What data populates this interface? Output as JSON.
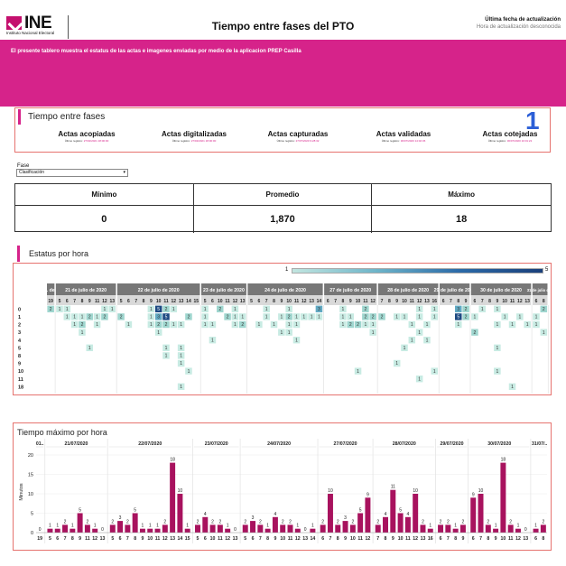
{
  "header": {
    "logo_text": "INE",
    "logo_subtext": "Instituto Nacional Electoral",
    "title": "Tiempo entre fases del PTO",
    "update_label": "Última fecha de  actualización",
    "update_value": "Hora de actualización desconocida"
  },
  "banner": {
    "text": "El presente tablero muestra el estatus de las actas e imagenes enviadas por medio de la aplicacion PREP Casilla"
  },
  "fases_section": {
    "title": "Tiempo entre fases",
    "marker": "1",
    "items": [
      {
        "title": "Actas acopiadas",
        "sub_label": "Último registro:",
        "sub_value": "27/02/2021 18:00:00"
      },
      {
        "title": "Actas digitalizadas",
        "sub_label": "Último registro:",
        "sub_value": "27/02/2021 18:00:00"
      },
      {
        "title": "Actas capturadas",
        "sub_label": "Último registro:",
        "sub_value": "27/07/2020 9:28:32"
      },
      {
        "title": "Actas validadas",
        "sub_label": "Último registro:",
        "sub_value": "30/07/2020 14:02:36"
      },
      {
        "title": "Actas cotejadas",
        "sub_label": "Último registro:",
        "sub_value": "30/07/2020 10:01:22"
      }
    ]
  },
  "filter": {
    "label": "Fase",
    "selected": "Clasificación"
  },
  "stats": {
    "headers": [
      "Mínimo",
      "Promedio",
      "Máximo"
    ],
    "values": [
      "0",
      "1,870",
      "18"
    ]
  },
  "heatmap_section": {
    "title": "Estatus por hora",
    "legend_min": "1",
    "legend_max": "5",
    "colors": [
      "#c8ebe3",
      "#9fd6cf",
      "#62aac3",
      "#2e6ea8",
      "#1d4a82"
    ],
    "header_bg": "#777777",
    "row_labels": [
      "0",
      "1",
      "2",
      "3",
      "4",
      "5",
      "8",
      "9",
      "10",
      "11",
      "18"
    ],
    "groups": [
      {
        "label": "1. de..",
        "hours": [
          "19"
        ]
      },
      {
        "label": "21 de julio de 2020",
        "hours": [
          "5",
          "6",
          "7",
          "8",
          "9",
          "11",
          "12",
          "13"
        ]
      },
      {
        "label": "22 de julio de 2020",
        "hours": [
          "5",
          "6",
          "7",
          "8",
          "9",
          "10",
          "11",
          "12",
          "13",
          "14",
          "15"
        ]
      },
      {
        "label": "23 de julio de 2020",
        "hours": [
          "5",
          "6",
          "10",
          "11",
          "12",
          "13"
        ]
      },
      {
        "label": "24 de julio de 2020",
        "hours": [
          "5",
          "6",
          "7",
          "8",
          "9",
          "10",
          "11",
          "12",
          "13",
          "14"
        ]
      },
      {
        "label": "27 de julio de 2020",
        "hours": [
          "6",
          "7",
          "8",
          "9",
          "10",
          "11",
          "12"
        ]
      },
      {
        "label": "28 de julio de 2020",
        "hours": [
          "7",
          "8",
          "9",
          "10",
          "11",
          "12",
          "13",
          "16"
        ]
      },
      {
        "label": "29 de julio de 2020",
        "hours": [
          "6",
          "7",
          "8",
          "9"
        ]
      },
      {
        "label": "30 de julio de 2020",
        "hours": [
          "6",
          "7",
          "8",
          "9",
          "10",
          "11",
          "12",
          "13"
        ]
      },
      {
        "label": "31 de julio de..",
        "hours": [
          "6",
          "8"
        ]
      }
    ],
    "cells": [
      {
        "r": 0,
        "c": 0,
        "v": 2
      },
      {
        "r": 0,
        "c": 1,
        "v": 1
      },
      {
        "r": 0,
        "c": 2,
        "v": 1
      },
      {
        "r": 0,
        "c": 7,
        "v": 1
      },
      {
        "r": 0,
        "c": 8,
        "v": 1
      },
      {
        "r": 1,
        "c": 2,
        "v": 1
      },
      {
        "r": 1,
        "c": 3,
        "v": 1
      },
      {
        "r": 1,
        "c": 4,
        "v": 1
      },
      {
        "r": 1,
        "c": 5,
        "v": 2
      },
      {
        "r": 1,
        "c": 6,
        "v": 1
      },
      {
        "r": 1,
        "c": 7,
        "v": 2
      },
      {
        "r": 2,
        "c": 3,
        "v": 1
      },
      {
        "r": 2,
        "c": 4,
        "v": 2
      },
      {
        "r": 2,
        "c": 6,
        "v": 1
      },
      {
        "r": 3,
        "c": 4,
        "v": 1
      },
      {
        "r": 5,
        "c": 5,
        "v": 1
      },
      {
        "r": 0,
        "c": 13,
        "v": 1
      },
      {
        "r": 0,
        "c": 14,
        "v": 5
      },
      {
        "r": 0,
        "c": 15,
        "v": 2
      },
      {
        "r": 0,
        "c": 16,
        "v": 1
      },
      {
        "r": 1,
        "c": 9,
        "v": 2
      },
      {
        "r": 1,
        "c": 13,
        "v": 1
      },
      {
        "r": 1,
        "c": 14,
        "v": 3
      },
      {
        "r": 1,
        "c": 15,
        "v": 5
      },
      {
        "r": 1,
        "c": 18,
        "v": 2
      },
      {
        "r": 2,
        "c": 10,
        "v": 1
      },
      {
        "r": 2,
        "c": 13,
        "v": 1
      },
      {
        "r": 2,
        "c": 14,
        "v": 2
      },
      {
        "r": 2,
        "c": 15,
        "v": 2
      },
      {
        "r": 2,
        "c": 16,
        "v": 1
      },
      {
        "r": 2,
        "c": 17,
        "v": 1
      },
      {
        "r": 3,
        "c": 14,
        "v": 1
      },
      {
        "r": 5,
        "c": 15,
        "v": 1
      },
      {
        "r": 5,
        "c": 17,
        "v": 1
      },
      {
        "r": 6,
        "c": 15,
        "v": 1
      },
      {
        "r": 6,
        "c": 17,
        "v": 1
      },
      {
        "r": 7,
        "c": 17,
        "v": 1
      },
      {
        "r": 8,
        "c": 18,
        "v": 1
      },
      {
        "r": 10,
        "c": 17,
        "v": 1
      },
      {
        "r": 0,
        "c": 20,
        "v": 1
      },
      {
        "r": 0,
        "c": 22,
        "v": 2
      },
      {
        "r": 0,
        "c": 24,
        "v": 1
      },
      {
        "r": 1,
        "c": 20,
        "v": 1
      },
      {
        "r": 1,
        "c": 23,
        "v": 2
      },
      {
        "r": 1,
        "c": 24,
        "v": 1
      },
      {
        "r": 1,
        "c": 25,
        "v": 1
      },
      {
        "r": 2,
        "c": 20,
        "v": 1
      },
      {
        "r": 2,
        "c": 21,
        "v": 1
      },
      {
        "r": 2,
        "c": 24,
        "v": 1
      },
      {
        "r": 2,
        "c": 25,
        "v": 2
      },
      {
        "r": 4,
        "c": 21,
        "v": 1
      },
      {
        "r": 0,
        "c": 28,
        "v": 1
      },
      {
        "r": 0,
        "c": 31,
        "v": 1
      },
      {
        "r": 0,
        "c": 35,
        "v": 3
      },
      {
        "r": 1,
        "c": 28,
        "v": 1
      },
      {
        "r": 1,
        "c": 30,
        "v": 1
      },
      {
        "r": 1,
        "c": 31,
        "v": 2
      },
      {
        "r": 1,
        "c": 32,
        "v": 1
      },
      {
        "r": 1,
        "c": 33,
        "v": 1
      },
      {
        "r": 1,
        "c": 34,
        "v": 1
      },
      {
        "r": 1,
        "c": 35,
        "v": 1
      },
      {
        "r": 2,
        "c": 27,
        "v": 1
      },
      {
        "r": 2,
        "c": 29,
        "v": 1
      },
      {
        "r": 2,
        "c": 31,
        "v": 1
      },
      {
        "r": 2,
        "c": 32,
        "v": 1
      },
      {
        "r": 3,
        "c": 30,
        "v": 1
      },
      {
        "r": 3,
        "c": 31,
        "v": 1
      },
      {
        "r": 4,
        "c": 32,
        "v": 1
      },
      {
        "r": 0,
        "c": 38,
        "v": 1
      },
      {
        "r": 0,
        "c": 41,
        "v": 2
      },
      {
        "r": 1,
        "c": 38,
        "v": 1
      },
      {
        "r": 1,
        "c": 39,
        "v": 1
      },
      {
        "r": 1,
        "c": 41,
        "v": 2
      },
      {
        "r": 1,
        "c": 42,
        "v": 2
      },
      {
        "r": 1,
        "c": 43,
        "v": 2
      },
      {
        "r": 2,
        "c": 38,
        "v": 1
      },
      {
        "r": 2,
        "c": 39,
        "v": 2
      },
      {
        "r": 2,
        "c": 40,
        "v": 2
      },
      {
        "r": 2,
        "c": 41,
        "v": 1
      },
      {
        "r": 2,
        "c": 42,
        "v": 1
      },
      {
        "r": 3,
        "c": 42,
        "v": 1
      },
      {
        "r": 8,
        "c": 40,
        "v": 1
      },
      {
        "r": 0,
        "c": 48,
        "v": 1
      },
      {
        "r": 0,
        "c": 50,
        "v": 1
      },
      {
        "r": 1,
        "c": 45,
        "v": 1
      },
      {
        "r": 1,
        "c": 46,
        "v": 1
      },
      {
        "r": 1,
        "c": 48,
        "v": 1
      },
      {
        "r": 1,
        "c": 50,
        "v": 1
      },
      {
        "r": 2,
        "c": 47,
        "v": 1
      },
      {
        "r": 2,
        "c": 49,
        "v": 1
      },
      {
        "r": 3,
        "c": 48,
        "v": 1
      },
      {
        "r": 4,
        "c": 47,
        "v": 1
      },
      {
        "r": 4,
        "c": 49,
        "v": 1
      },
      {
        "r": 5,
        "c": 46,
        "v": 1
      },
      {
        "r": 7,
        "c": 45,
        "v": 1
      },
      {
        "r": 8,
        "c": 50,
        "v": 1
      },
      {
        "r": 9,
        "c": 48,
        "v": 1
      },
      {
        "r": 0,
        "c": 53,
        "v": 3
      },
      {
        "r": 0,
        "c": 54,
        "v": 2
      },
      {
        "r": 0,
        "c": 56,
        "v": 1
      },
      {
        "r": 1,
        "c": 53,
        "v": 5
      },
      {
        "r": 1,
        "c": 54,
        "v": 2
      },
      {
        "r": 1,
        "c": 55,
        "v": 1
      },
      {
        "r": 2,
        "c": 53,
        "v": 1
      },
      {
        "r": 3,
        "c": 55,
        "v": 2
      },
      {
        "r": 0,
        "c": 58,
        "v": 1
      },
      {
        "r": 0,
        "c": 64,
        "v": 2
      },
      {
        "r": 0,
        "c": 66,
        "v": 2
      },
      {
        "r": 1,
        "c": 59,
        "v": 1
      },
      {
        "r": 1,
        "c": 61,
        "v": 1
      },
      {
        "r": 1,
        "c": 63,
        "v": 1
      },
      {
        "r": 1,
        "c": 65,
        "v": 1
      },
      {
        "r": 2,
        "c": 58,
        "v": 1
      },
      {
        "r": 2,
        "c": 60,
        "v": 1
      },
      {
        "r": 2,
        "c": 62,
        "v": 1
      },
      {
        "r": 2,
        "c": 63,
        "v": 1
      },
      {
        "r": 3,
        "c": 64,
        "v": 1
      },
      {
        "r": 5,
        "c": 58,
        "v": 1
      },
      {
        "r": 8,
        "c": 58,
        "v": 1
      },
      {
        "r": 10,
        "c": 60,
        "v": 1
      }
    ]
  },
  "max_section": {
    "title": "Tiempo máximo por hora"
  },
  "chart_data": {
    "type": "bar",
    "color": "#a8125e",
    "ylabel": "Minutos",
    "yticks": [
      0,
      5,
      10,
      15,
      20
    ],
    "ylim": [
      0,
      20
    ],
    "groups": [
      {
        "label": "01..",
        "hours": [
          "19"
        ],
        "values": [
          0
        ]
      },
      {
        "label": "21/07/2020",
        "hours": [
          "5",
          "6",
          "7",
          "8",
          "9",
          "11",
          "12",
          "13"
        ],
        "values": [
          1,
          1,
          2,
          1,
          5,
          2,
          1,
          0
        ]
      },
      {
        "label": "22/07/2020",
        "hours": [
          "5",
          "6",
          "7",
          "8",
          "9",
          "10",
          "11",
          "12",
          "13",
          "14",
          "15"
        ],
        "values": [
          2,
          3,
          2,
          5,
          1,
          1,
          1,
          2,
          18,
          10,
          1
        ]
      },
      {
        "label": "23/07/2020",
        "hours": [
          "5",
          "6",
          "10",
          "11",
          "12",
          "13"
        ],
        "values": [
          2,
          4,
          2,
          2,
          1,
          0
        ]
      },
      {
        "label": "24/07/2020",
        "hours": [
          "5",
          "6",
          "7",
          "8",
          "9",
          "10",
          "11",
          "12",
          "13",
          "14"
        ],
        "values": [
          2,
          3,
          2,
          1,
          4,
          2,
          2,
          1,
          0,
          1
        ]
      },
      {
        "label": "27/07/2020",
        "hours": [
          "6",
          "7",
          "8",
          "9",
          "10",
          "11",
          "12"
        ],
        "values": [
          2,
          10,
          2,
          3,
          2,
          5,
          9
        ]
      },
      {
        "label": "28/07/2020",
        "hours": [
          "7",
          "8",
          "9",
          "10",
          "11",
          "12",
          "13",
          "16"
        ],
        "values": [
          2,
          4,
          11,
          5,
          4,
          10,
          2,
          1
        ]
      },
      {
        "label": "29/07/2020",
        "hours": [
          "6",
          "7",
          "8",
          "9"
        ],
        "values": [
          2,
          2,
          1,
          2
        ]
      },
      {
        "label": "30/07/2020",
        "hours": [
          "6",
          "7",
          "8",
          "9",
          "10",
          "11",
          "12",
          "13"
        ],
        "values": [
          9,
          10,
          2,
          1,
          18,
          2,
          1,
          0
        ]
      },
      {
        "label": "31/07/..",
        "hours": [
          "6",
          "8"
        ],
        "values": [
          1,
          2
        ]
      }
    ]
  }
}
